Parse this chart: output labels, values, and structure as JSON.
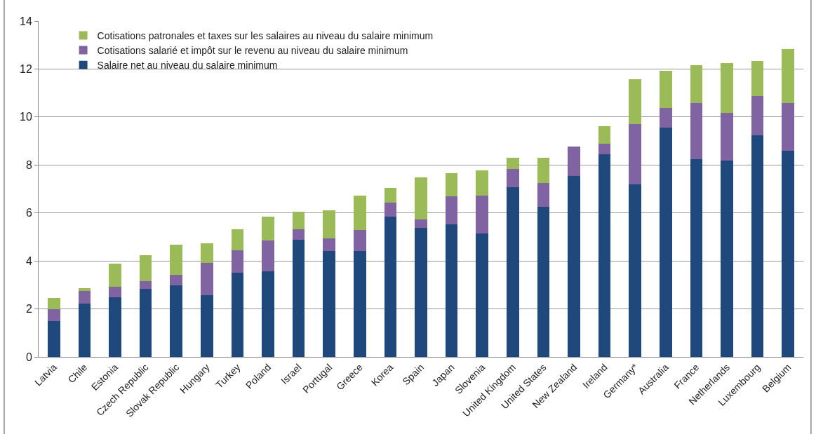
{
  "chart_data": {
    "type": "bar",
    "stacked": true,
    "categories": [
      "Latvia",
      "Chile",
      "Estonia",
      "Czech Republic",
      "Slovak Republic",
      "Hungary",
      "Turkey",
      "Poland",
      "Israel",
      "Portugal",
      "Greece",
      "Korea",
      "Spain",
      "Japan",
      "Slovenia",
      "United Kingdom",
      "United States",
      "New Zealand",
      "Ireland",
      "Germany*",
      "Australia",
      "France",
      "Netherlands",
      "Luxembourg",
      "Belgium"
    ],
    "series": [
      {
        "name": "Salaire net au niveau du salaire minimum",
        "color": "#1f497d",
        "values": [
          1.48,
          2.22,
          2.48,
          2.83,
          2.97,
          2.57,
          3.5,
          3.58,
          4.88,
          4.42,
          4.42,
          5.84,
          5.38,
          5.53,
          5.15,
          7.07,
          6.25,
          7.55,
          8.44,
          7.2,
          9.55,
          8.24,
          8.18,
          9.24,
          8.58
        ]
      },
      {
        "name": "Cotisations salarié et impôt sur le revenu au niveau du salaire minimum",
        "color": "#8064a2",
        "values": [
          0.52,
          0.52,
          0.44,
          0.34,
          0.46,
          1.36,
          0.93,
          1.28,
          0.43,
          0.51,
          0.86,
          0.58,
          0.35,
          1.16,
          1.56,
          0.77,
          1.0,
          1.22,
          0.44,
          2.49,
          0.84,
          2.34,
          2.0,
          1.62,
          1.99
        ]
      },
      {
        "name": "Cotisations patronales et taxes sur les salaires au niveau du salaire minimum",
        "color": "#9bbb59",
        "values": [
          0.46,
          0.11,
          0.98,
          1.08,
          1.25,
          0.81,
          0.89,
          0.98,
          0.74,
          1.17,
          1.45,
          0.63,
          1.74,
          0.98,
          1.06,
          0.47,
          1.06,
          0,
          0.75,
          1.88,
          1.54,
          1.59,
          2.08,
          1.47,
          2.26
        ]
      }
    ],
    "ylim": [
      0,
      14
    ],
    "yticks": [
      0,
      2,
      4,
      6,
      8,
      10,
      12,
      14
    ],
    "grid": "y",
    "legend": "top left"
  }
}
